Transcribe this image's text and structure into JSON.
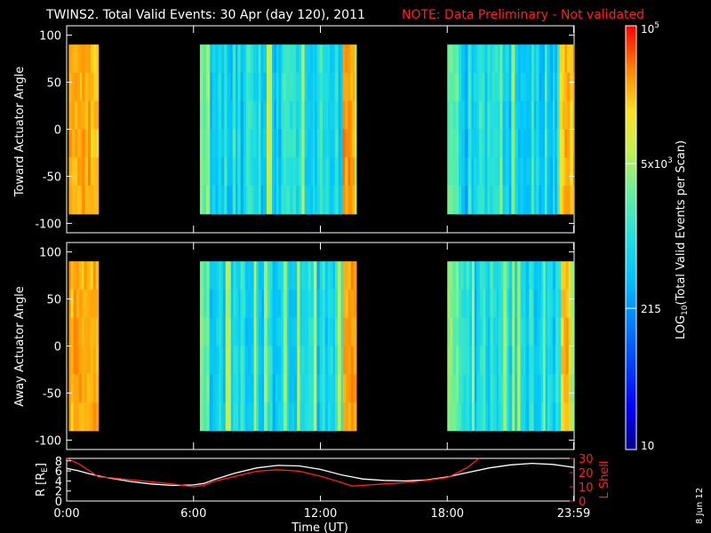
{
  "header": {
    "title": "TWINS2. Total Valid Events: 30 Apr (day 120), 2011",
    "note": "NOTE: Data Preliminary - Not validated",
    "title_color": "#ffffff",
    "note_color": "#ff2020"
  },
  "stamp": "8 Jun 12",
  "chart_data": [
    {
      "type": "heatmap",
      "panel": "toward",
      "ylabel": "Toward Actuator Angle",
      "ylim": [
        -110,
        110
      ],
      "yticks": [
        "-100",
        "-50",
        "0",
        "50",
        "100"
      ],
      "ytick_values": [
        -100,
        -50,
        0,
        50,
        100
      ],
      "angle_range": [
        -90,
        90
      ],
      "data_blocks_hours": [
        [
          0.1,
          1.5
        ],
        [
          6.3,
          13.7
        ],
        [
          18.0,
          23.99
        ]
      ],
      "profile_seed": 11
    },
    {
      "type": "heatmap",
      "panel": "away",
      "ylabel": "Away Actuator Angle",
      "ylim": [
        -110,
        110
      ],
      "yticks": [
        "-100",
        "-50",
        "0",
        "50",
        "100"
      ],
      "ytick_values": [
        -100,
        -50,
        0,
        50,
        100
      ],
      "angle_range": [
        -90,
        90
      ],
      "data_blocks_hours": [
        [
          0.1,
          1.5
        ],
        [
          6.3,
          13.7
        ],
        [
          18.0,
          23.99
        ]
      ],
      "profile_seed": 23
    },
    {
      "type": "line",
      "panel": "orbit",
      "xlabel": "Time (UT)",
      "xticks": [
        "0:00",
        "6:00",
        "12:00",
        "18:00",
        "23:59"
      ],
      "xtick_hours": [
        0,
        6,
        12,
        18,
        23.98
      ],
      "xlim": [
        0,
        24
      ],
      "left_axis": {
        "label": "R [RE]",
        "label_main": "R [R",
        "label_sub": "E",
        "label_end": "]",
        "ylim": [
          0,
          8.5
        ],
        "yticks": [
          "0",
          "2",
          "4",
          "6",
          "8"
        ],
        "ytick_values": [
          0,
          2,
          4,
          6,
          8
        ],
        "color": "#ffffff"
      },
      "right_axis": {
        "label": "L Shell",
        "ylim": [
          0,
          30
        ],
        "yticks": [
          "0",
          "10",
          "20",
          "30"
        ],
        "ytick_values": [
          0,
          10,
          20,
          30
        ],
        "color": "#ff2020"
      },
      "series": [
        {
          "name": "R [RE]",
          "color": "#ffffff",
          "x": [
            0,
            0.5,
            1,
            1.5,
            2,
            3,
            4,
            5,
            6,
            6.5,
            7,
            8,
            9,
            10,
            11,
            12,
            13,
            13.5,
            14,
            15,
            16,
            17,
            18,
            19,
            20,
            21,
            22,
            23,
            24
          ],
          "y": [
            6.5,
            6.1,
            5.5,
            5.0,
            4.6,
            3.9,
            3.4,
            3.1,
            3.2,
            3.5,
            4.3,
            5.6,
            6.6,
            7.1,
            7.0,
            6.3,
            5.2,
            4.8,
            4.4,
            4.1,
            4.0,
            4.2,
            4.8,
            5.7,
            6.6,
            7.2,
            7.5,
            7.3,
            6.7
          ]
        },
        {
          "name": "L Shell",
          "color": "#ff2020",
          "x": [
            0,
            0.6,
            1.5,
            2,
            3,
            4,
            5,
            6,
            6.5,
            7,
            8,
            9,
            10,
            11,
            12,
            13,
            13.5,
            14,
            15,
            16,
            17,
            18,
            18.5,
            19,
            19.5
          ],
          "y": [
            30,
            26,
            17,
            16.5,
            15,
            13.5,
            12,
            10,
            11,
            14,
            17.5,
            21,
            22,
            21,
            17.5,
            13,
            10.5,
            11,
            12,
            13,
            14.5,
            16.5,
            20,
            24,
            30
          ]
        }
      ]
    }
  ],
  "colorbar": {
    "label": "LOG10(Total Valid Events per Scan)",
    "label_main": "LOG",
    "label_sub": "10",
    "label_end": "(Total Valid Events per Scan)",
    "scale": "log",
    "range": [
      10,
      100000
    ],
    "ticks": [
      {
        "text": "10",
        "value": 10
      },
      {
        "text": "215",
        "value": 215
      },
      {
        "text_base": "5x10",
        "text_exp": "3",
        "value": 5000
      },
      {
        "text_base": "10",
        "text_exp": "5",
        "value": 100000
      }
    ]
  }
}
